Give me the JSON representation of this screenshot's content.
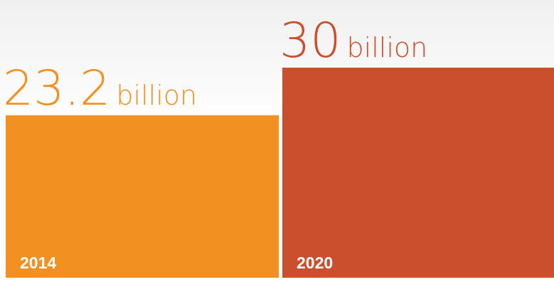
{
  "chart_data": {
    "type": "bar",
    "categories": [
      "2014",
      "2020"
    ],
    "values": [
      23.2,
      30
    ],
    "value_unit": "billion",
    "value_labels": [
      "23.2",
      "30"
    ],
    "colors": [
      "#f39022",
      "#cb4e2d"
    ],
    "label_color": "#ffffff",
    "ylim": [
      0,
      30
    ],
    "title": "",
    "xlabel": "",
    "ylabel": "",
    "grid": false,
    "legend": "none"
  }
}
